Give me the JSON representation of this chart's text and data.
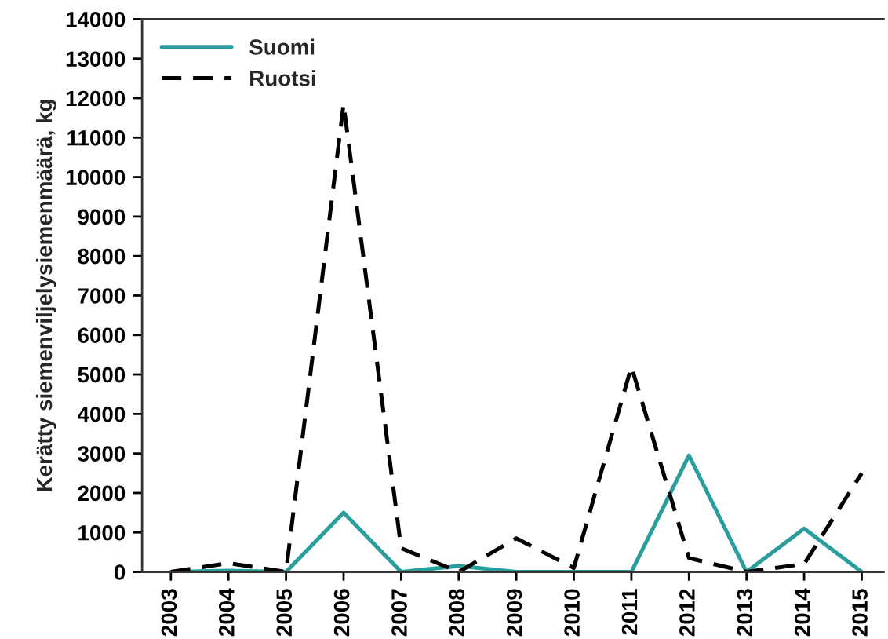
{
  "chart_data": {
    "type": "line",
    "ylabel": "Kerätty siemenviljelysiemenmäärä, kg",
    "categories": [
      "2003",
      "2004",
      "2005",
      "2006",
      "2007",
      "2008",
      "2009",
      "2010",
      "2011",
      "2012",
      "2013",
      "2014",
      "2015"
    ],
    "series": [
      {
        "name": "Suomi",
        "color": "#2a9d9d",
        "line_style": "solid",
        "values": [
          0,
          30,
          0,
          1500,
          0,
          150,
          0,
          0,
          0,
          2950,
          0,
          1100,
          0
        ]
      },
      {
        "name": "Ruotsi",
        "color": "#000000",
        "line_style": "dashed",
        "values": [
          0,
          220,
          0,
          11850,
          600,
          0,
          850,
          100,
          5200,
          350,
          0,
          200,
          2500
        ]
      }
    ],
    "ylim": [
      0,
      14000
    ],
    "yticks": [
      0,
      1000,
      2000,
      3000,
      4000,
      5000,
      6000,
      7000,
      8000,
      9000,
      10000,
      11000,
      12000,
      13000,
      14000
    ],
    "legend": "top left",
    "grid": false,
    "marker": "none"
  }
}
